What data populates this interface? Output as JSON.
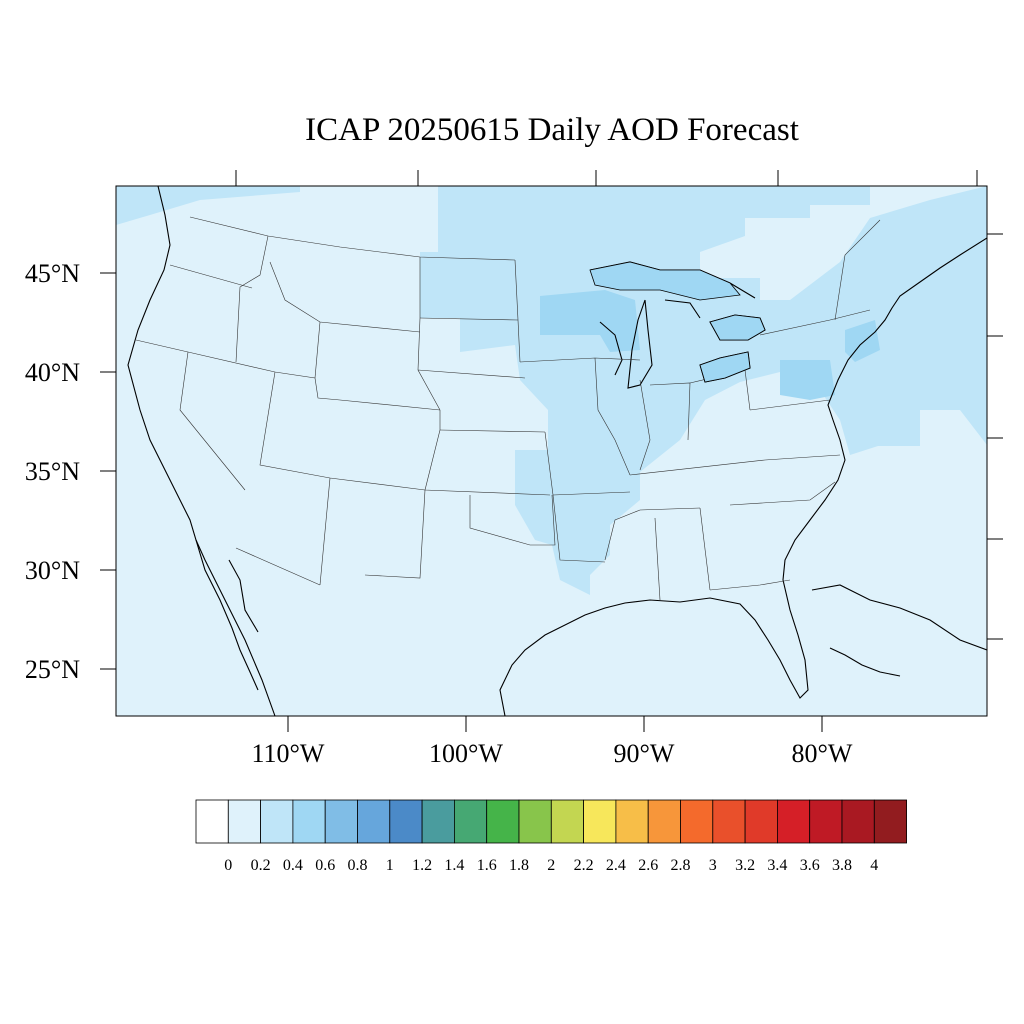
{
  "title": "ICAP 20250615 Daily AOD Forecast",
  "lat_labels": [
    "45°N",
    "40°N",
    "35°N",
    "30°N",
    "25°N"
  ],
  "lon_labels": [
    "110°W",
    "100°W",
    "90°W",
    "80°W"
  ],
  "colorbar": {
    "colors": [
      "#ffffff",
      "#dff2fb",
      "#bfe5f8",
      "#9fd7f3",
      "#80bde6",
      "#66a6dc",
      "#4b8ac8",
      "#4a9c9e",
      "#46a873",
      "#45b449",
      "#88c54b",
      "#c3d651",
      "#f7e75b",
      "#f7be48",
      "#f7963a",
      "#f46a2c",
      "#e9502b",
      "#e03a29",
      "#d51f27",
      "#bf1a25",
      "#a91922",
      "#921c1f"
    ],
    "labels": [
      "0",
      "0.2",
      "0.4",
      "0.6",
      "0.8",
      "1",
      "1.2",
      "1.4",
      "1.6",
      "1.8",
      "2",
      "2.2",
      "2.4",
      "2.6",
      "2.8",
      "3",
      "3.2",
      "3.4",
      "3.6",
      "3.8",
      "4"
    ]
  },
  "map": {
    "background_color": "#dff2fb",
    "aod_0_2_to_0_4_color": "#bfe5f8",
    "aod_0_4_to_0_6_color": "#9fd7f3"
  }
}
